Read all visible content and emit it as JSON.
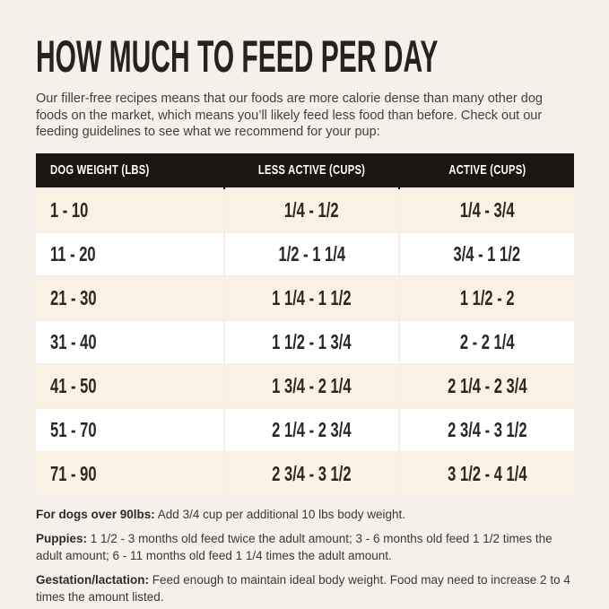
{
  "header": {
    "title": "HOW MUCH TO FEED PER DAY",
    "intro": "Our filler-free recipes means that our foods are more calorie dense than many other dog foods on the market, which means you’ll likely feed less food than before. Check out our feeding guidelines to see what we recommend for your pup:"
  },
  "table": {
    "columns": [
      "DOG WEIGHT (LBS)",
      "LESS ACTIVE (CUPS)",
      "ACTIVE (CUPS)"
    ],
    "rows": [
      [
        "1 - 10",
        "1/4 - 1/2",
        "1/4 - 3/4"
      ],
      [
        "11 - 20",
        "1/2 - 1 1/4",
        "3/4 - 1 1/2"
      ],
      [
        "21 - 30",
        "1 1/4 - 1 1/2",
        "1 1/2 - 2"
      ],
      [
        "31 - 40",
        "1 1/2 - 1 3/4",
        "2 - 2 1/4"
      ],
      [
        "41 - 50",
        "1 3/4 - 2 1/4",
        "2 1/4 - 2 3/4"
      ],
      [
        "51 - 70",
        "2 1/4 - 2 3/4",
        "2 3/4 - 3 1/2"
      ],
      [
        "71 - 90",
        "2 3/4 - 3 1/2",
        "3 1/2 - 4 1/4"
      ]
    ]
  },
  "notes": [
    {
      "label": "For dogs over 90lbs:",
      "text": "Add 3/4 cup per additional 10 lbs body weight."
    },
    {
      "label": "Puppies:",
      "text": "1 1/2 - 3 months old feed twice the adult amount; 3 - 6 months old feed 1 1/2 times the adult amount; 6 - 11 months old feed 1 1/4 times the adult amount."
    },
    {
      "label": "Gestation/lactation:",
      "text": "Feed enough to maintain ideal body weight. Food may need to increase 2 to 4 times the amount listed."
    }
  ],
  "colors": {
    "page_background": "#f5f1ea",
    "table_header_background": "#1b1513",
    "table_header_text": "#ffffff",
    "row_cream": "#faf1e3",
    "row_white": "#ffffff",
    "divider": "#f4efe7",
    "title_text": "#262220",
    "body_text": "#43403b"
  }
}
